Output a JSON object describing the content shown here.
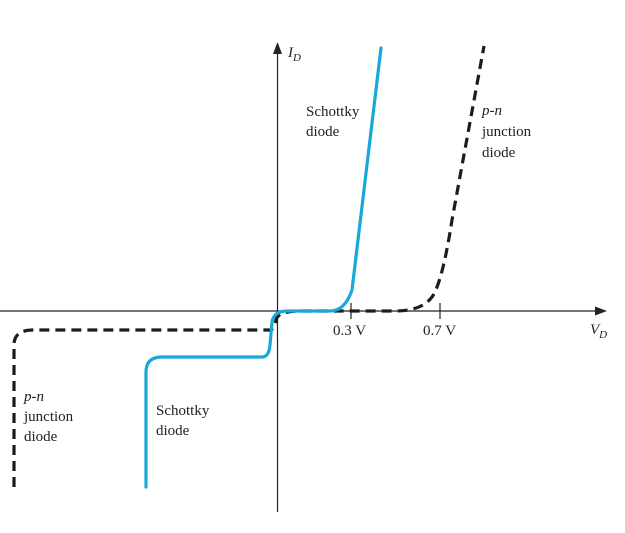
{
  "chart_data": {
    "type": "line",
    "title": "",
    "xlabel": {
      "base": "V",
      "sub": "D"
    },
    "ylabel": {
      "base": "I",
      "sub": "D"
    },
    "xticks": [
      {
        "value": 0.3,
        "label": "0.3 V"
      },
      {
        "value": 0.7,
        "label": "0.7 V"
      }
    ],
    "grid": false,
    "series": [
      {
        "key": "schottky",
        "forward_knee_v": 0.3,
        "annotations": {
          "forward": [
            "Schottky",
            "diode"
          ],
          "reverse": [
            "Schottky",
            "diode"
          ]
        }
      },
      {
        "key": "pn",
        "forward_knee_v": 0.7,
        "annotations": {
          "forward": [
            "p-n",
            "junction",
            "diode"
          ],
          "reverse": [
            "p-n",
            "junction",
            "diode"
          ]
        }
      }
    ]
  }
}
